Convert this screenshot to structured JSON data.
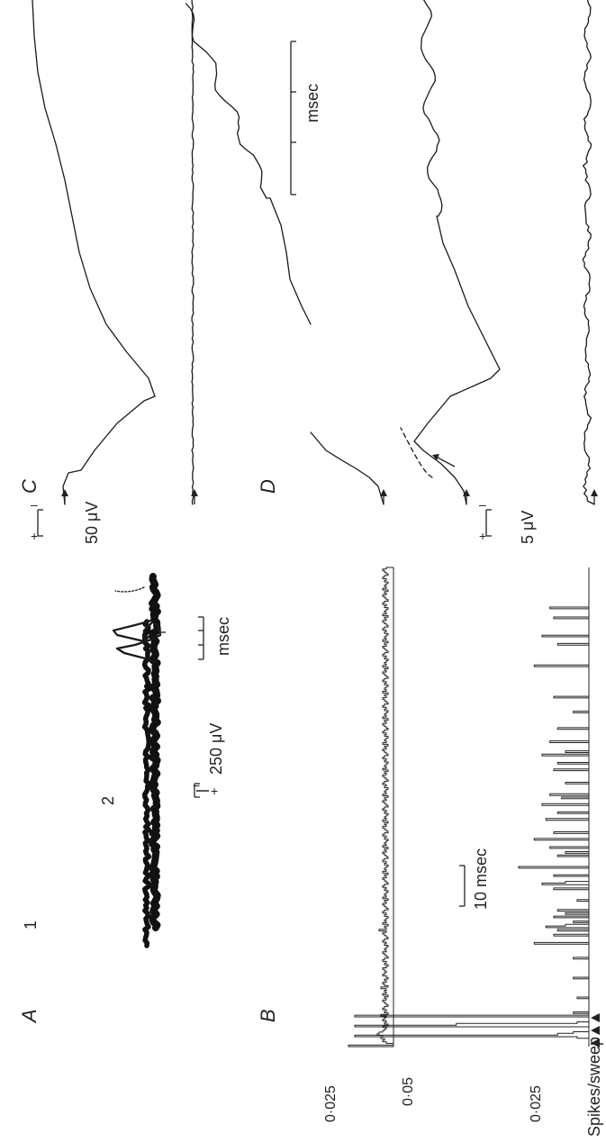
{
  "panels": {
    "A": {
      "letter": "A",
      "sub1_label": "1",
      "sub2_label": "2",
      "time_scale_label": "msec",
      "voltage_scale_label": "250 μV",
      "polarity_top": "−",
      "polarity_bottom": "+"
    },
    "B": {
      "letter": "B",
      "time_scale_label": "10 msec",
      "y_axis_label": "Spikes/sweep",
      "top_tick_labels": [
        "0·025"
      ],
      "bottom_tick_labels": [
        "0·05",
        "0·025"
      ]
    },
    "C": {
      "letter": "C",
      "voltage_scale_label": "50 μV",
      "time_scale_label": "msec",
      "polarity_plus": "+",
      "polarity_minus": "–"
    },
    "D": {
      "letter": "D",
      "voltage_scale_label": "5 μV",
      "polarity_plus": "+",
      "polarity_minus": "–"
    }
  },
  "chart_data": [
    {
      "type": "bar",
      "title": "",
      "panel": "B (upper histogram)",
      "ylabel": "Spikes/sweep",
      "ylim": [
        0,
        0.035
      ],
      "y_ticks": [
        0.025
      ],
      "stimulus_markers": 0,
      "bin_ms": 0.5,
      "x_range_ms": [
        0,
        150
      ],
      "values": [
        0.025,
        0.0,
        0.004,
        0.006,
        0.005,
        0.007,
        0.006,
        0.009,
        0.008,
        0.006,
        0.005,
        0.004,
        0.006,
        0.003,
        0.005,
        0.004,
        0.006,
        0.005,
        0.004,
        0.007,
        0.003,
        0.005,
        0.004,
        0.006,
        0.005,
        0.003,
        0.004,
        0.005,
        0.006,
        0.004,
        0.005,
        0.003,
        0.006,
        0.004,
        0.005,
        0.004,
        0.007,
        0.003,
        0.005,
        0.006,
        0.004,
        0.005,
        0.003,
        0.004,
        0.006,
        0.005,
        0.004,
        0.005,
        0.006,
        0.004,
        0.003,
        0.005,
        0.004,
        0.006,
        0.005,
        0.003,
        0.004,
        0.005,
        0.006,
        0.004,
        0.005,
        0.004,
        0.003,
        0.005,
        0.004,
        0.006,
        0.005,
        0.003,
        0.004,
        0.005,
        0.006,
        0.004,
        0.008,
        0.004,
        0.005,
        0.003,
        0.006,
        0.004,
        0.005,
        0.004,
        0.003,
        0.005,
        0.004,
        0.006,
        0.005,
        0.003,
        0.004,
        0.005,
        0.006,
        0.004,
        0.005,
        0.003,
        0.006,
        0.004,
        0.005,
        0.004,
        0.003,
        0.005,
        0.004,
        0.006,
        0.005,
        0.003,
        0.004,
        0.005,
        0.006,
        0.004,
        0.005,
        0.003,
        0.006,
        0.004,
        0.005,
        0.004,
        0.003,
        0.005,
        0.004,
        0.006,
        0.005,
        0.003,
        0.004,
        0.005,
        0.006,
        0.004,
        0.005,
        0.003,
        0.006,
        0.004,
        0.005,
        0.004,
        0.003,
        0.005,
        0.004,
        0.006,
        0.005,
        0.003,
        0.004,
        0.005,
        0.006,
        0.004,
        0.005,
        0.003,
        0.006,
        0.004,
        0.005,
        0.004,
        0.003,
        0.005,
        0.004,
        0.006,
        0.005,
        0.003,
        0.004,
        0.005,
        0.006,
        0.004,
        0.005,
        0.003,
        0.006,
        0.004,
        0.005,
        0.004,
        0.003,
        0.005,
        0.004,
        0.006,
        0.005,
        0.003,
        0.004,
        0.005,
        0.006,
        0.004,
        0.005,
        0.003,
        0.006,
        0.004,
        0.005,
        0.004,
        0.003,
        0.005,
        0.004,
        0.006,
        0.005,
        0.003,
        0.004,
        0.005,
        0.006,
        0.004,
        0.005,
        0.003,
        0.006,
        0.004,
        0.005,
        0.004,
        0.003,
        0.005,
        0.004,
        0.006,
        0.005,
        0.003,
        0.004,
        0.005,
        0.006,
        0.004,
        0.005,
        0.003,
        0.006,
        0.004,
        0.005,
        0.004,
        0.003,
        0.005,
        0.004,
        0.006,
        0.005,
        0.003,
        0.004,
        0.005,
        0.006,
        0.004,
        0.005,
        0.003,
        0.006,
        0.004,
        0.005,
        0.004,
        0.003,
        0.005,
        0.004,
        0.006,
        0.005,
        0.003,
        0.004,
        0.005,
        0.006,
        0.004,
        0.005,
        0.003,
        0.006,
        0.004,
        0.005,
        0.004,
        0.003,
        0.005,
        0.004,
        0.006,
        0.005,
        0.003,
        0.004,
        0.005,
        0.006,
        0.004,
        0.005,
        0.003,
        0.006,
        0.004,
        0.005,
        0.004,
        0.003,
        0.005,
        0.004,
        0.006,
        0.005,
        0.003,
        0.004,
        0.005,
        0.006,
        0.004,
        0.005,
        0.003,
        0.006,
        0.004,
        0.005,
        0.004,
        0.003,
        0.005,
        0.004,
        0.006,
        0.005,
        0.003,
        0.004,
        0.005,
        0.006,
        0.004,
        0.005,
        0.003,
        0.006,
        0.004,
        0.005,
        0.004,
        0.003,
        0.005,
        0.004,
        0.006,
        0.005,
        0.003,
        0.004,
        0.005,
        0.006,
        0.004
      ]
    },
    {
      "type": "bar",
      "title": "",
      "panel": "B (lower histogram)",
      "ylabel": "Spikes/sweep",
      "ylim": [
        0,
        0.06
      ],
      "y_ticks": [
        0.025,
        0.05
      ],
      "stimulus_markers": 3,
      "bin_ms": 0.5,
      "x_range_ms": [
        0,
        150
      ],
      "values": [
        0.0,
        0.0,
        0.0,
        0.0,
        0.0,
        0.003,
        0.06,
        0.008,
        0.004,
        0.0,
        0.0,
        0.0,
        0.06,
        0.034,
        0.003,
        0.0,
        0.0,
        0.0,
        0.06,
        0.0,
        0.004,
        0.0,
        0.0,
        0.0,
        0.0,
        0.0,
        0.0,
        0.0,
        0.0,
        0.003,
        0.0,
        0.0,
        0.0,
        0.0,
        0.0,
        0.0,
        0.0,
        0.0,
        0.0,
        0.0,
        0.0,
        0.004,
        0.0,
        0.0,
        0.0,
        0.0,
        0.0,
        0.0,
        0.0,
        0.0,
        0.0,
        0.0,
        0.0,
        0.004,
        0.0,
        0.0,
        0.0,
        0.0,
        0.0,
        0.0,
        0.0,
        0.0,
        0.014,
        0.0,
        0.0,
        0.0,
        0.0,
        0.009,
        0.0,
        0.0,
        0.008,
        0.0,
        0.011,
        0.006,
        0.0,
        0.004,
        0.0,
        0.0,
        0.009,
        0.0,
        0.006,
        0.0,
        0.008,
        0.0,
        0.0,
        0.0,
        0.0,
        0.0,
        0.003,
        0.0,
        0.0,
        0.0,
        0.0,
        0.0,
        0.0,
        0.009,
        0.0,
        0.0,
        0.012,
        0.006,
        0.0,
        0.0,
        0.0,
        0.009,
        0.0,
        0.0,
        0.0,
        0.0,
        0.018,
        0.0,
        0.0,
        0.0,
        0.0,
        0.0,
        0.0,
        0.008,
        0.0,
        0.006,
        0.0,
        0.0,
        0.01,
        0.0,
        0.0,
        0.0,
        0.0,
        0.014,
        0.0,
        0.0,
        0.0,
        0.009,
        0.0,
        0.0,
        0.0,
        0.0,
        0.0,
        0.0,
        0.0,
        0.011,
        0.0,
        0.0,
        0.0,
        0.008,
        0.0,
        0.0,
        0.0,
        0.0,
        0.012,
        0.0,
        0.0,
        0.0,
        0.007,
        0.0,
        0.01,
        0.0,
        0.0,
        0.0,
        0.0,
        0.0,
        0.0,
        0.006,
        0.0,
        0.0,
        0.0,
        0.0,
        0.0,
        0.0,
        0.0,
        0.009,
        0.0,
        0.0,
        0.0,
        0.008,
        0.0,
        0.0,
        0.0,
        0.0,
        0.012,
        0.0,
        0.006,
        0.0,
        0.0,
        0.0,
        0.0,
        0.0,
        0.01,
        0.0,
        0.0,
        0.0,
        0.0,
        0.0,
        0.0,
        0.0,
        0.008,
        0.0,
        0.0,
        0.0,
        0.0,
        0.0,
        0.0,
        0.0,
        0.0,
        0.0,
        0.004,
        0.0,
        0.0,
        0.0,
        0.0,
        0.0,
        0.0,
        0.0,
        0.0,
        0.009,
        0.0,
        0.0,
        0.0,
        0.0,
        0.0,
        0.0,
        0.0,
        0.0,
        0.0,
        0.0,
        0.0,
        0.0,
        0.0,
        0.0,
        0.0,
        0.0,
        0.0,
        0.0,
        0.014,
        0.0,
        0.0,
        0.0,
        0.0,
        0.0,
        0.0,
        0.0,
        0.0,
        0.0,
        0.0,
        0.0,
        0.0,
        0.008,
        0.0,
        0.0,
        0.0,
        0.0,
        0.012,
        0.0,
        0.0,
        0.0,
        0.0,
        0.0,
        0.0,
        0.0,
        0.0,
        0.0,
        0.0,
        0.009,
        0.0,
        0.0,
        0.0,
        0.0,
        0.0,
        0.01,
        0.0,
        0.0,
        0.0,
        0.0,
        0.0,
        0.0,
        0.0,
        0.0,
        0.0,
        0.0,
        0.0,
        0.0,
        0.0,
        0.0,
        0.0,
        0.0,
        0.0,
        0.0,
        0.0,
        0.0,
        0.0,
        0.0,
        0.0,
        0.0
      ]
    }
  ]
}
